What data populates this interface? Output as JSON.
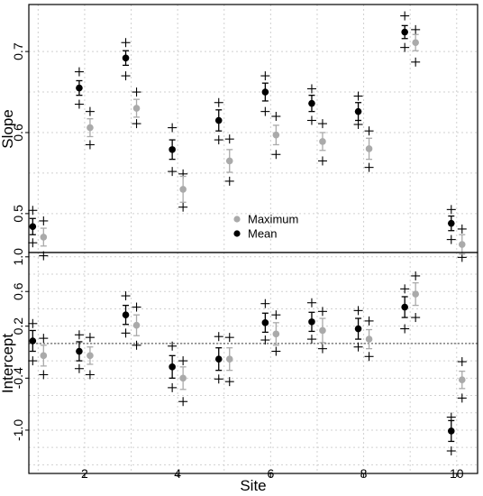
{
  "chart_data": [
    {
      "type": "scatter",
      "panel": "top",
      "xlabel": "",
      "ylabel": "Slope",
      "x": [
        1,
        2,
        3,
        4,
        5,
        6,
        7,
        8,
        9,
        10
      ],
      "xlim": [
        0.8,
        10.45
      ],
      "ylim": [
        0.452,
        0.758
      ],
      "yticks": [
        0.5,
        0.6,
        0.7
      ],
      "ytick_labels": [
        "0.5",
        "0.6",
        "0.7"
      ],
      "grid": true,
      "legend": {
        "placement": "center-bottom",
        "entries": [
          {
            "label": "Maximum",
            "color": "#aaaaaa"
          },
          {
            "label": "Mean",
            "color": "#000000"
          }
        ]
      },
      "series": [
        {
          "name": "Mean",
          "color": "#000000",
          "values": [
            0.484,
            0.655,
            0.692,
            0.579,
            0.615,
            0.65,
            0.636,
            0.626,
            0.724,
            0.488
          ],
          "error_low": [
            0.474,
            0.646,
            0.683,
            0.567,
            0.602,
            0.639,
            0.626,
            0.615,
            0.716,
            0.479
          ],
          "error_high": [
            0.494,
            0.664,
            0.701,
            0.591,
            0.628,
            0.661,
            0.646,
            0.637,
            0.732,
            0.497
          ],
          "range_low": [
            0.464,
            0.635,
            0.67,
            0.552,
            0.591,
            0.626,
            0.615,
            0.61,
            0.705,
            0.468
          ],
          "range_high": [
            0.504,
            0.675,
            0.711,
            0.606,
            0.637,
            0.67,
            0.654,
            0.645,
            0.744,
            0.505
          ]
        },
        {
          "name": "Maximum",
          "color": "#aaaaaa",
          "values": [
            0.471,
            0.606,
            0.63,
            0.53,
            0.565,
            0.597,
            0.589,
            0.58,
            0.711,
            0.462
          ],
          "error_low": [
            0.46,
            0.595,
            0.619,
            0.514,
            0.551,
            0.585,
            0.578,
            0.567,
            0.701,
            0.45
          ],
          "error_high": [
            0.482,
            0.617,
            0.641,
            0.546,
            0.579,
            0.609,
            0.6,
            0.593,
            0.721,
            0.474
          ],
          "range_low": [
            0.448,
            0.585,
            0.611,
            0.508,
            0.54,
            0.573,
            0.565,
            0.557,
            0.687,
            0.446
          ],
          "range_high": [
            0.491,
            0.626,
            0.65,
            0.549,
            0.592,
            0.62,
            0.611,
            0.602,
            0.727,
            0.481
          ]
        }
      ]
    },
    {
      "type": "scatter",
      "panel": "bottom",
      "xlabel": "Site",
      "ylabel": "Intercept",
      "x": [
        1,
        2,
        3,
        4,
        5,
        6,
        7,
        8,
        9,
        10
      ],
      "xlim": [
        0.8,
        10.45
      ],
      "ylim": [
        -1.5,
        1.05
      ],
      "xticks": [
        2,
        4,
        6,
        8,
        10
      ],
      "xtick_labels": [
        "2",
        "4",
        "6",
        "8",
        "10"
      ],
      "yticks": [
        -1.0,
        -0.4,
        0.2,
        0.6,
        1.0
      ],
      "ytick_labels": [
        "-1.0",
        "-0.4",
        "0.2",
        "0.6",
        "1.0"
      ],
      "reference_line": 0,
      "grid": true,
      "series": [
        {
          "name": "Mean",
          "color": "#000000",
          "values": [
            0.03,
            -0.09,
            0.33,
            -0.27,
            -0.18,
            0.24,
            0.25,
            0.17,
            0.42,
            -1.01
          ],
          "error_low": [
            -0.09,
            -0.2,
            0.22,
            -0.4,
            -0.31,
            0.13,
            0.14,
            0.05,
            0.3,
            -1.13
          ],
          "error_high": [
            0.15,
            0.02,
            0.44,
            -0.14,
            -0.05,
            0.35,
            0.36,
            0.29,
            0.54,
            -0.89
          ],
          "range_low": [
            -0.2,
            -0.29,
            0.12,
            -0.51,
            -0.41,
            0.04,
            0.05,
            -0.04,
            0.17,
            -1.24
          ],
          "range_high": [
            0.23,
            0.1,
            0.55,
            -0.03,
            0.08,
            0.46,
            0.47,
            0.38,
            0.63,
            -0.85
          ]
        },
        {
          "name": "Maximum",
          "color": "#aaaaaa",
          "values": [
            -0.14,
            -0.14,
            0.21,
            -0.4,
            -0.18,
            0.11,
            0.15,
            0.05,
            0.57,
            -0.42
          ],
          "error_low": [
            -0.26,
            -0.24,
            0.09,
            -0.53,
            -0.31,
            -0.02,
            0.01,
            -0.06,
            0.44,
            -0.52
          ],
          "error_high": [
            -0.02,
            -0.04,
            0.33,
            -0.27,
            -0.05,
            0.24,
            0.29,
            0.16,
            0.7,
            -0.32
          ],
          "range_low": [
            -0.36,
            -0.36,
            -0.02,
            -0.67,
            -0.44,
            -0.09,
            -0.06,
            -0.15,
            0.3,
            -0.63
          ],
          "range_high": [
            0.06,
            0.07,
            0.42,
            -0.2,
            0.07,
            0.33,
            0.37,
            0.26,
            0.78,
            -0.21
          ]
        }
      ]
    }
  ]
}
